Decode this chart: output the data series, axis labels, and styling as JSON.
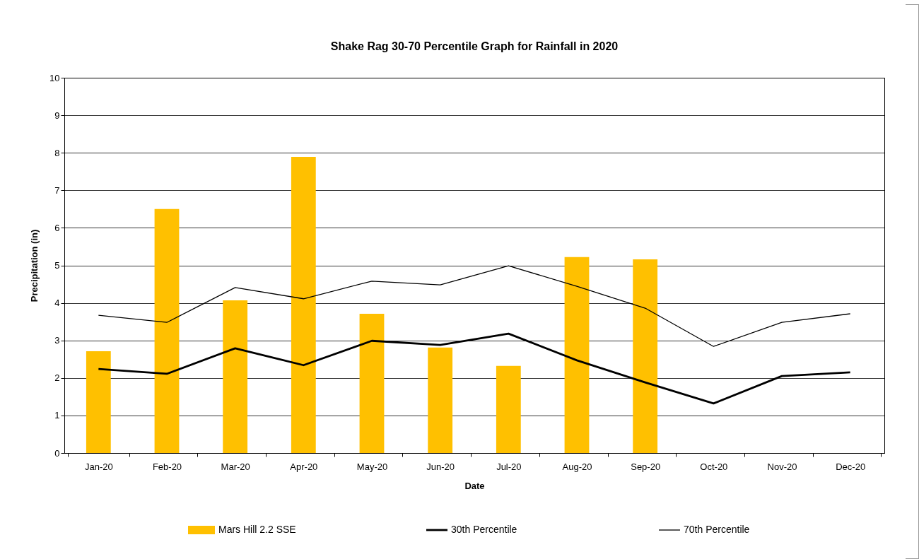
{
  "chart_data": {
    "type": "bar",
    "title": "Shake Rag 30-70 Percentile Graph for Rainfall in 2020",
    "xlabel": "Date",
    "ylabel": "Precipitation (in)",
    "categories": [
      "Jan-20",
      "Feb-20",
      "Mar-20",
      "Apr-20",
      "May-20",
      "Jun-20",
      "Jul-20",
      "Aug-20",
      "Sep-20",
      "Oct-20",
      "Nov-20",
      "Dec-20"
    ],
    "series": [
      {
        "name": "Mars Hill 2.2 SSE",
        "color": "#ffc000",
        "values": [
          2.71,
          6.5,
          4.07,
          7.89,
          3.71,
          2.81,
          2.32,
          5.22,
          5.16,
          null,
          null,
          null
        ]
      },
      {
        "name": "30th Percentile",
        "type": "line",
        "color": "#000000",
        "values": [
          2.24,
          2.11,
          2.79,
          2.34,
          2.99,
          2.88,
          3.18,
          2.47,
          1.88,
          1.32,
          2.05,
          2.15
        ]
      },
      {
        "name": "70th Percentile",
        "type": "line",
        "color": "#000000",
        "values": [
          3.67,
          3.48,
          4.41,
          4.11,
          4.58,
          4.48,
          4.99,
          4.44,
          3.86,
          2.84,
          3.48,
          3.71
        ]
      }
    ],
    "ylim": [
      0,
      10
    ],
    "yticks": [
      0,
      1,
      2,
      3,
      4,
      5,
      6,
      7,
      8,
      9,
      10
    ],
    "grid": "y",
    "legend": "bottom",
    "marker": "none",
    "line_style": "solid"
  }
}
